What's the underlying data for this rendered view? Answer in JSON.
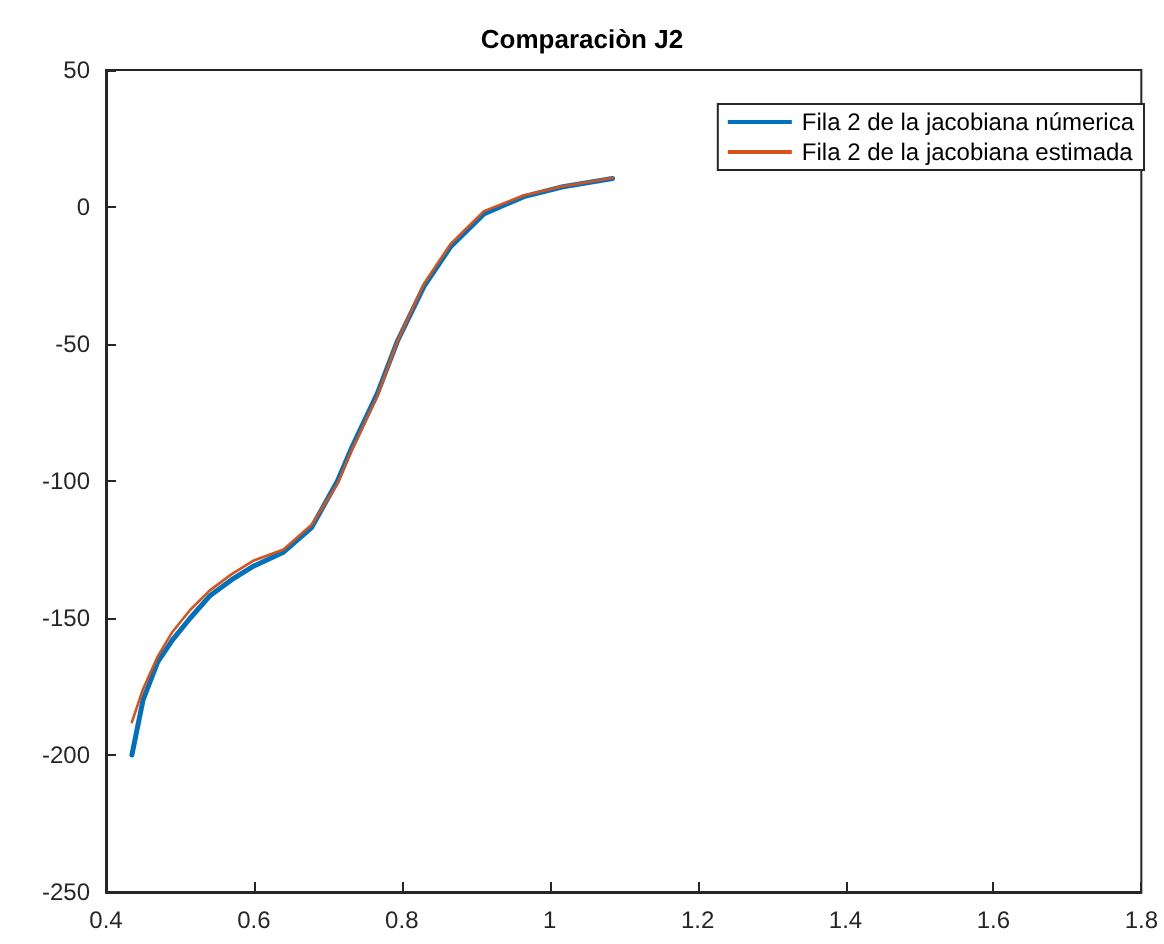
{
  "chart_data": {
    "type": "line",
    "title": "Comparaciòn J2",
    "xlim": [
      0.4,
      1.8
    ],
    "xticks": [
      0.4,
      0.6,
      0.8,
      1,
      1.2,
      1.4,
      1.6,
      1.8
    ],
    "ylim": [
      -250,
      50
    ],
    "yticks": [
      -250,
      -200,
      -150,
      -100,
      -50,
      0,
      50
    ],
    "grid": false,
    "legend": "top right",
    "marker": "none",
    "line_style": "solid",
    "series": [
      {
        "name": "Fila 2 de la jacobiana númerica",
        "color": "#0072bd",
        "x": [
          0.435,
          0.45,
          0.47,
          0.49,
          0.514,
          0.54,
          0.57,
          0.6,
          0.64,
          0.678,
          0.713,
          0.732,
          0.767,
          0.794,
          0.83,
          0.866,
          0.911,
          0.965,
          1.018,
          1.085
        ],
        "values": [
          -200,
          -180,
          -166,
          -158,
          -150,
          -142,
          -136,
          -131,
          -126,
          -117,
          -100,
          -88,
          -68,
          -49,
          -29,
          -14.5,
          -2.5,
          3.8,
          7.4,
          10.4
        ]
      },
      {
        "name": "Fila 2 de la jacobiana estimada",
        "color": "#d95319",
        "x": [
          0.435,
          0.45,
          0.47,
          0.49,
          0.514,
          0.54,
          0.57,
          0.6,
          0.64,
          0.678,
          0.713,
          0.732,
          0.767,
          0.794,
          0.83,
          0.866,
          0.911,
          0.965,
          1.018,
          1.085
        ],
        "values": [
          -188,
          -176,
          -164,
          -155,
          -147,
          -140,
          -134,
          -129,
          -125,
          -116,
          -101,
          -89,
          -69,
          -49,
          -28,
          -13.5,
          -1.5,
          4.2,
          7.6,
          10.6
        ]
      }
    ]
  }
}
